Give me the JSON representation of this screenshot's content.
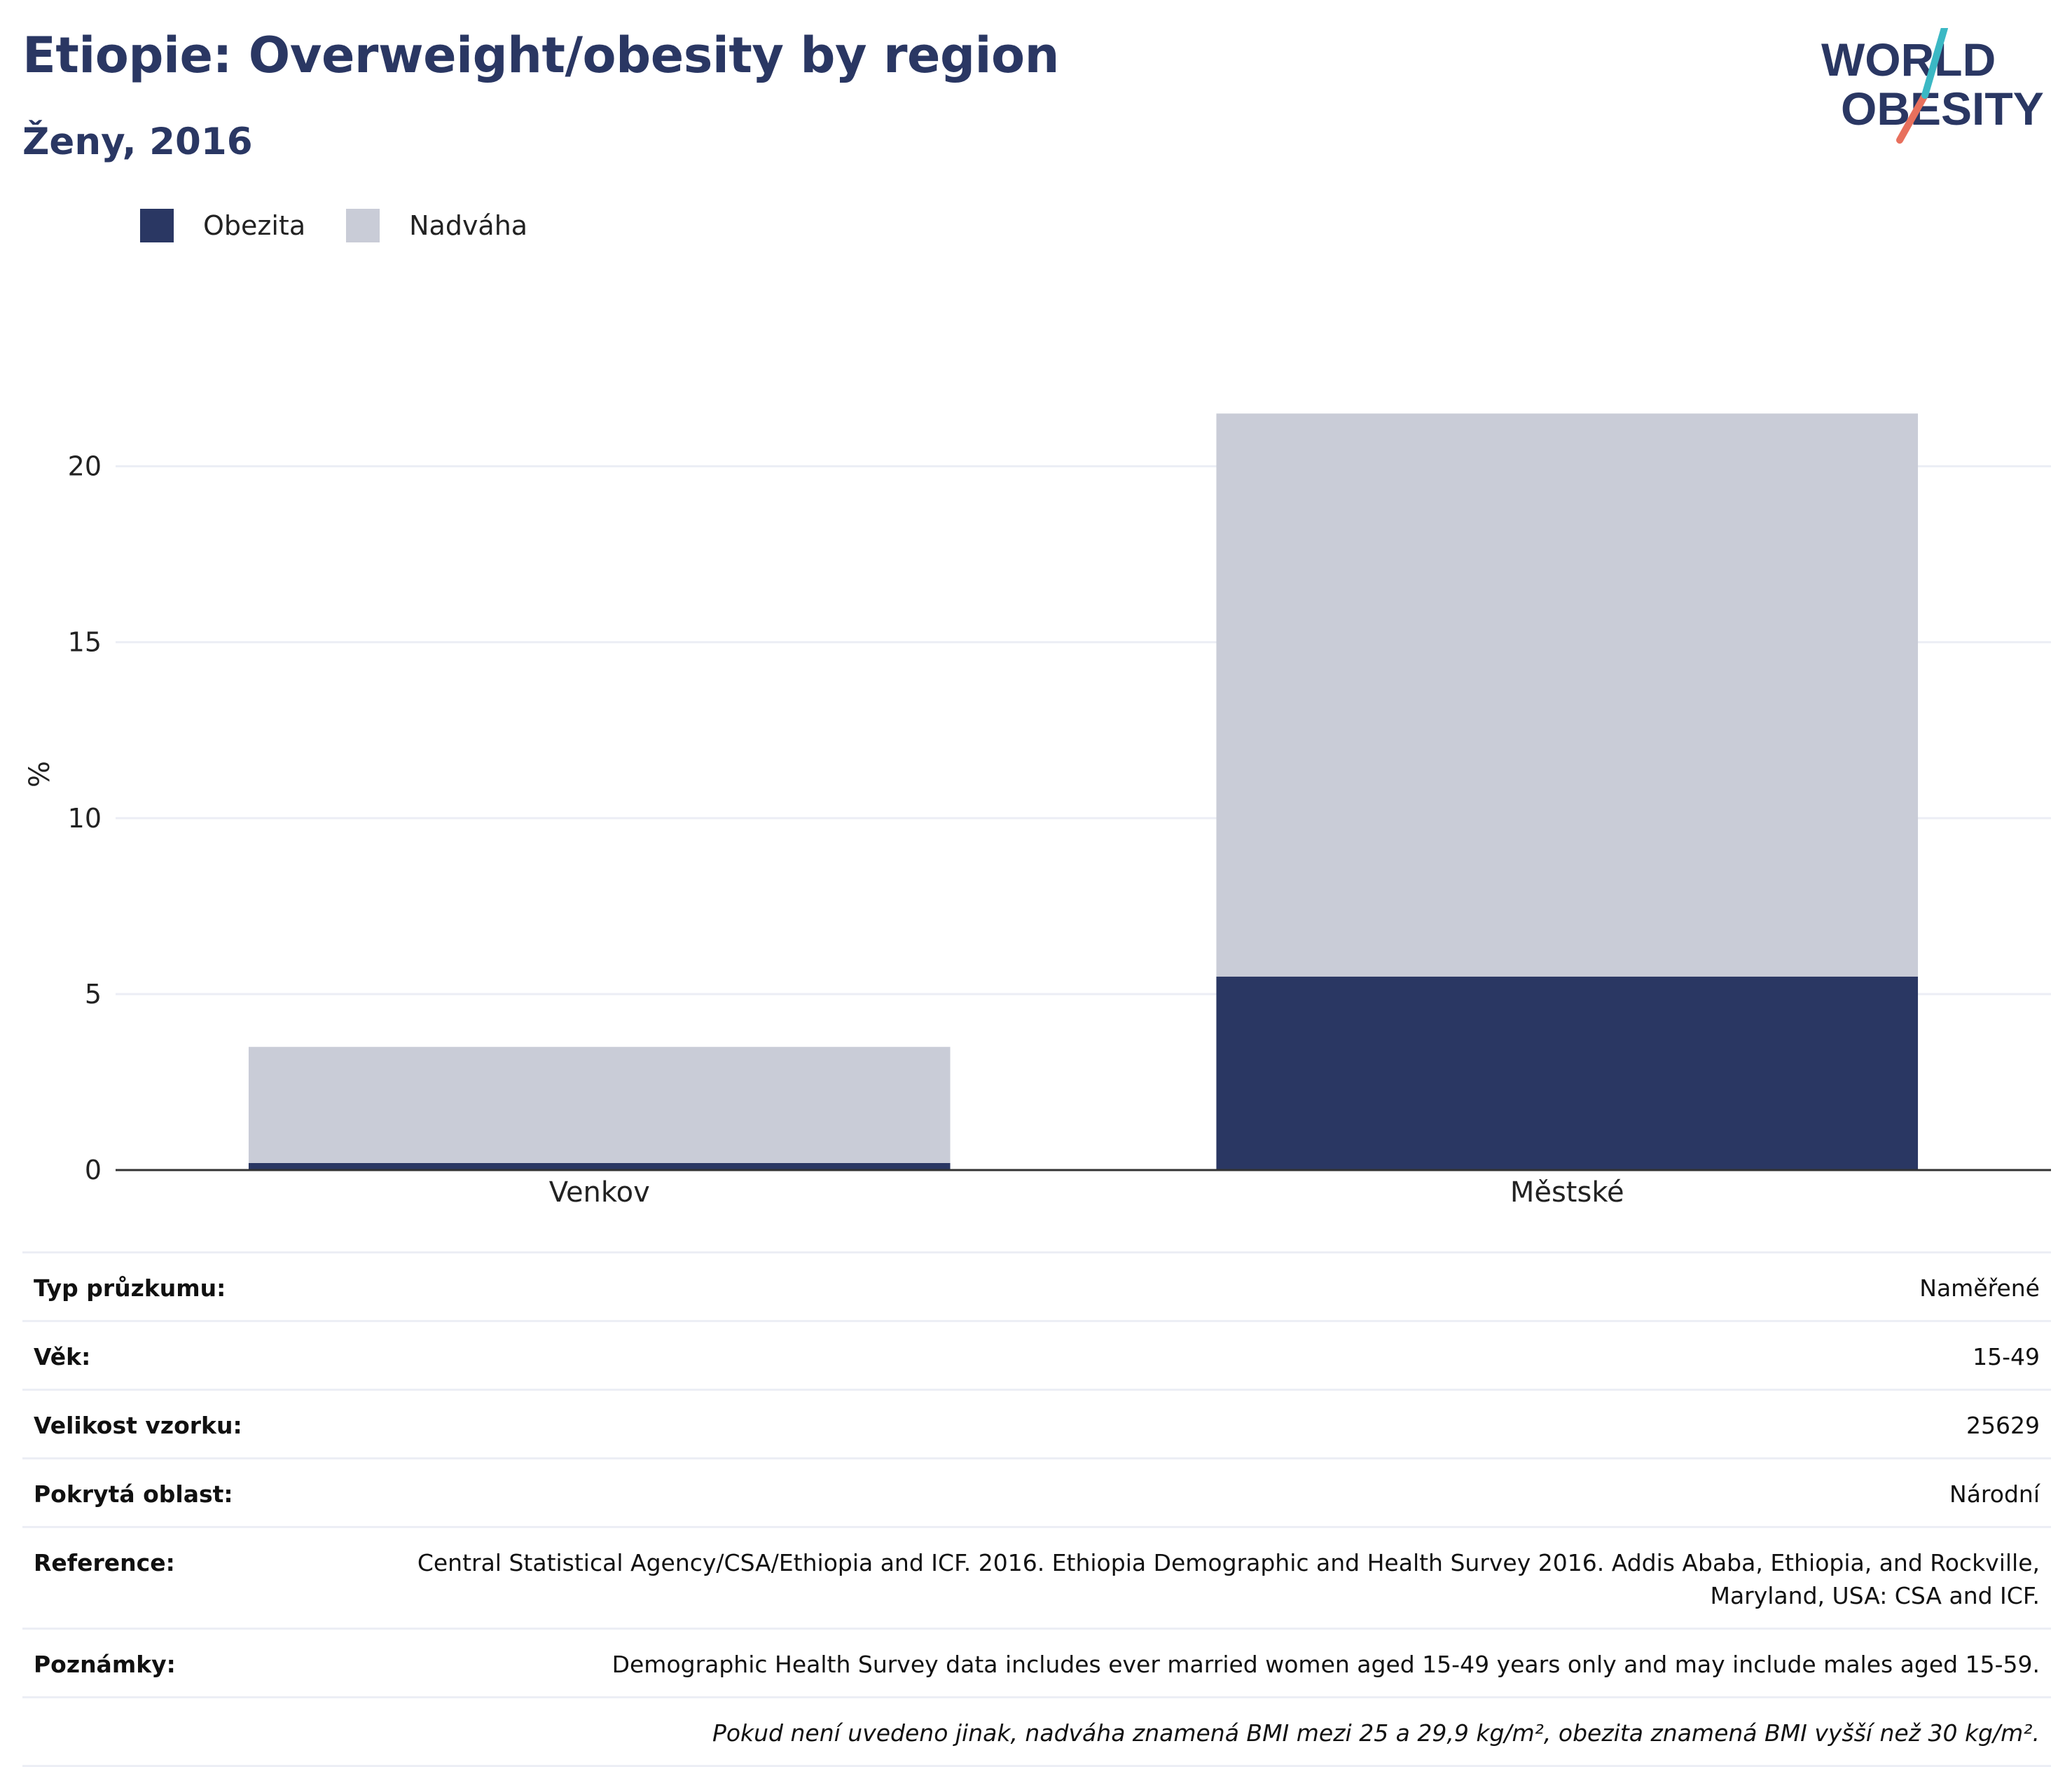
{
  "header": {
    "title": "Etiopie: Overweight/obesity by region",
    "subtitle": "Ženy, 2016",
    "logo_text": "WORLD OBESITY"
  },
  "colors": {
    "title": "#2a3763",
    "obesity": "#2a3763",
    "overweight": "#c9ccd7",
    "gridline": "#eceef5",
    "axis": "#333333",
    "logo_teal": "#3bb8c4",
    "logo_coral": "#e8705d"
  },
  "legend": {
    "items": [
      {
        "label": "Obezita",
        "color": "#2a3763"
      },
      {
        "label": "Nadváha",
        "color": "#c9ccd7"
      }
    ]
  },
  "chart_data": {
    "type": "bar",
    "stacked": true,
    "title": "Etiopie: Overweight/obesity by region",
    "subtitle": "Ženy, 2016",
    "ylabel": "%",
    "xlabel": "",
    "categories": [
      "Venkov",
      "Městské"
    ],
    "series": [
      {
        "name": "Obezita",
        "values": [
          0.2,
          5.5
        ],
        "color": "#2a3763"
      },
      {
        "name": "Nadváha",
        "values": [
          3.3,
          16.0
        ],
        "color": "#c9ccd7"
      }
    ],
    "ylim": [
      0,
      22.5
    ],
    "yticks": [
      0,
      5,
      10,
      15,
      20
    ],
    "grid": true,
    "legend_position": "top-left"
  },
  "info": {
    "rows": [
      {
        "label": "Typ průzkumu:",
        "value": "Naměřené"
      },
      {
        "label": "Věk:",
        "value": "15-49"
      },
      {
        "label": "Velikost vzorku:",
        "value": "25629"
      },
      {
        "label": "Pokrytá oblast:",
        "value": "Národní"
      },
      {
        "label": "Reference:",
        "value": "Central Statistical Agency/CSA/Ethiopia and ICF. 2016. Ethiopia Demographic and Health Survey 2016. Addis Ababa, Ethiopia, and Rockville, Maryland, USA: CSA and ICF."
      },
      {
        "label": "Poznámky:",
        "value": "Demographic Health Survey data includes ever married women aged 15-49 years only and may include males aged 15-59."
      }
    ],
    "footnote": "Pokud není uvedeno jinak, nadváha znamená BMI mezi 25 a 29,9 kg/m², obezita znamená BMI vyšší než 30 kg/m²."
  }
}
